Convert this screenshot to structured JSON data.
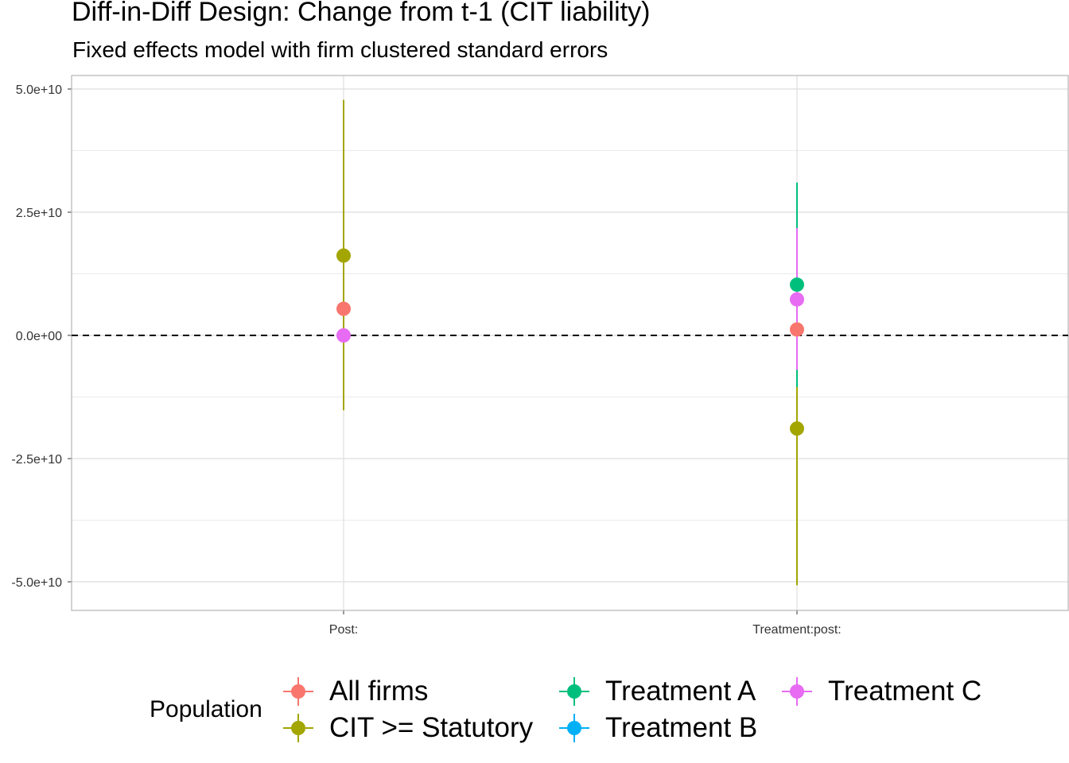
{
  "chart_data": {
    "type": "scatter",
    "title": "Diff-in-Diff Design: Change from t-1 (CIT liability)",
    "subtitle": "Fixed effects model with firm clustered standard errors",
    "xlabel": "",
    "ylabel": "",
    "categories": [
      "Post:",
      "Treatment:post:"
    ],
    "y_ticks": [
      "5.0e+10",
      "2.5e+10",
      "0.0e+00",
      "-2.5e+10",
      "-5.0e+10"
    ],
    "y_tick_values": [
      50000000000,
      25000000000,
      0,
      -25000000000,
      -50000000000
    ],
    "ylim": [
      -55500000000,
      52800000000
    ],
    "reference_line": 0,
    "grid": true,
    "legend": {
      "title": "Population",
      "placement": "bottom"
    },
    "series": [
      {
        "name": "All firms",
        "color": "#F8766D",
        "points": [
          {
            "category": "Post:",
            "estimate": 5400000000,
            "low": null,
            "high": null
          },
          {
            "category": "Treatment:post:",
            "estimate": 1200000000,
            "low": null,
            "high": null
          }
        ]
      },
      {
        "name": "CIT >= Statutory",
        "color": "#A3A500",
        "points": [
          {
            "category": "Post:",
            "estimate": 16200000000,
            "low": -15200000000,
            "high": 47800000000
          },
          {
            "category": "Treatment:post:",
            "estimate": -18900000000,
            "low": -50700000000,
            "high": 12900000000
          }
        ]
      },
      {
        "name": "Treatment A",
        "color": "#00BF7D",
        "points": [
          {
            "category": "Treatment:post:",
            "estimate": 10300000000,
            "low": -10500000000,
            "high": 31000000000
          }
        ]
      },
      {
        "name": "Treatment B",
        "color": "#00B0F6",
        "points": []
      },
      {
        "name": "Treatment C",
        "color": "#E76BF3",
        "points": [
          {
            "category": "Post:",
            "estimate": 0,
            "low": null,
            "high": null
          },
          {
            "category": "Treatment:post:",
            "estimate": 7300000000,
            "low": -7000000000,
            "high": 21800000000
          }
        ]
      }
    ]
  }
}
